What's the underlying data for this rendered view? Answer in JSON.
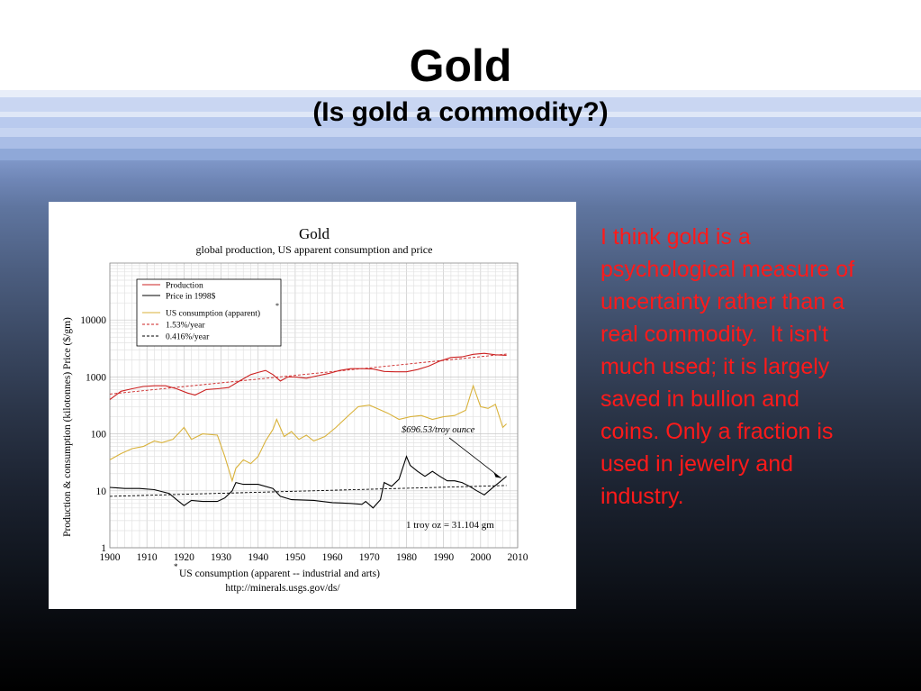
{
  "slide": {
    "title": "Gold",
    "subtitle": "(Is gold a commodity?)",
    "side_text": "I think gold is a psychological measure of uncertainty rather than a real commodity.  It isn't much used; it is largely saved in bullion and coins. Only a fraction is used in jewelry and industry."
  },
  "chart_data": {
    "type": "line",
    "title": "Gold",
    "subtitle": "global production, US apparent consumption and price",
    "ylabel": "Production & consumption (kilotonnes)   Price ($/gm)",
    "xlabel": "",
    "xlim": [
      1900,
      2010
    ],
    "ylim": [
      1,
      100000
    ],
    "yscale": "log",
    "grid": true,
    "x_ticks": [
      "1900",
      "1910",
      "1920",
      "1930",
      "1940",
      "1950",
      "1960",
      "1970",
      "1980",
      "1990",
      "2000",
      "2010"
    ],
    "y_ticks": [
      "1",
      "10",
      "100",
      "1000",
      "10000"
    ],
    "legend_position": "top-left",
    "footnote": "US consumption (apparent -- industrial and arts)",
    "source": "http://minerals.usgs.gov/ds/",
    "annotations": [
      {
        "text": "$696.53/troy ounce",
        "x": 2006,
        "y": 18
      },
      {
        "text": "1 troy oz = 31.104 gm",
        "x": 1997,
        "y": 3
      }
    ],
    "series": [
      {
        "name": "Production",
        "color": "#cc2222",
        "style": "solid",
        "x": [
          1900,
          1903,
          1906,
          1909,
          1912,
          1915,
          1918,
          1921,
          1923,
          1926,
          1929,
          1932,
          1935,
          1938,
          1940,
          1942,
          1944,
          1946,
          1948,
          1950,
          1953,
          1956,
          1959,
          1962,
          1965,
          1968,
          1971,
          1974,
          1977,
          1980,
          1983,
          1986,
          1989,
          1992,
          1995,
          1998,
          2001,
          2004,
          2007
        ],
        "y": [
          400,
          560,
          620,
          680,
          700,
          700,
          620,
          520,
          480,
          600,
          620,
          650,
          850,
          1100,
          1200,
          1300,
          1100,
          850,
          1000,
          1000,
          950,
          1050,
          1150,
          1300,
          1400,
          1400,
          1380,
          1250,
          1230,
          1230,
          1350,
          1550,
          1900,
          2200,
          2250,
          2500,
          2600,
          2450,
          2400
        ]
      },
      {
        "name": "Price in 1998$",
        "color": "#000000",
        "style": "solid",
        "x": [
          1900,
          1904,
          1908,
          1912,
          1916,
          1918,
          1920,
          1922,
          1925,
          1929,
          1931,
          1933,
          1934,
          1936,
          1940,
          1944,
          1946,
          1949,
          1955,
          1960,
          1965,
          1968,
          1969,
          1971,
          1973,
          1974,
          1976,
          1978,
          1980,
          1981,
          1983,
          1985,
          1987,
          1989,
          1991,
          1993,
          1995,
          1997,
          1999,
          2001,
          2003,
          2005,
          2007
        ],
        "y": [
          11.5,
          11,
          11,
          10.5,
          9,
          7,
          5.5,
          6.8,
          6.5,
          6.5,
          7.5,
          10,
          14,
          13,
          13,
          11,
          8,
          7,
          6.8,
          6.2,
          6,
          5.8,
          6.5,
          5,
          7,
          14,
          12,
          16,
          40,
          28,
          22,
          18,
          22,
          18,
          15,
          15,
          14,
          12,
          10,
          8.5,
          11,
          14,
          18
        ]
      },
      {
        "name": "US consumption (apparent)",
        "color": "#d9b23a",
        "style": "solid",
        "x": [
          1900,
          1903,
          1906,
          1909,
          1912,
          1914,
          1917,
          1919,
          1920,
          1922,
          1925,
          1929,
          1931,
          1933,
          1934,
          1936,
          1938,
          1940,
          1942,
          1944,
          1945,
          1947,
          1949,
          1951,
          1953,
          1955,
          1958,
          1961,
          1964,
          1967,
          1970,
          1972,
          1975,
          1978,
          1981,
          1984,
          1987,
          1990,
          1993,
          1996,
          1998,
          2000,
          2002,
          2004,
          2006,
          2007
        ],
        "y": [
          35,
          45,
          55,
          60,
          75,
          70,
          80,
          110,
          130,
          80,
          100,
          95,
          40,
          15,
          25,
          35,
          30,
          40,
          75,
          120,
          180,
          90,
          110,
          80,
          95,
          75,
          90,
          130,
          200,
          300,
          320,
          280,
          230,
          180,
          200,
          210,
          180,
          200,
          210,
          260,
          700,
          300,
          280,
          330,
          130,
          150
        ]
      },
      {
        "name": "1.53%/year",
        "color": "#cc2222",
        "style": "dashed",
        "x": [
          1900,
          2007
        ],
        "y": [
          500,
          2520
        ]
      },
      {
        "name": "0.416%/year",
        "color": "#000000",
        "style": "dashed",
        "x": [
          1900,
          2007
        ],
        "y": [
          8,
          12.4
        ]
      }
    ]
  }
}
